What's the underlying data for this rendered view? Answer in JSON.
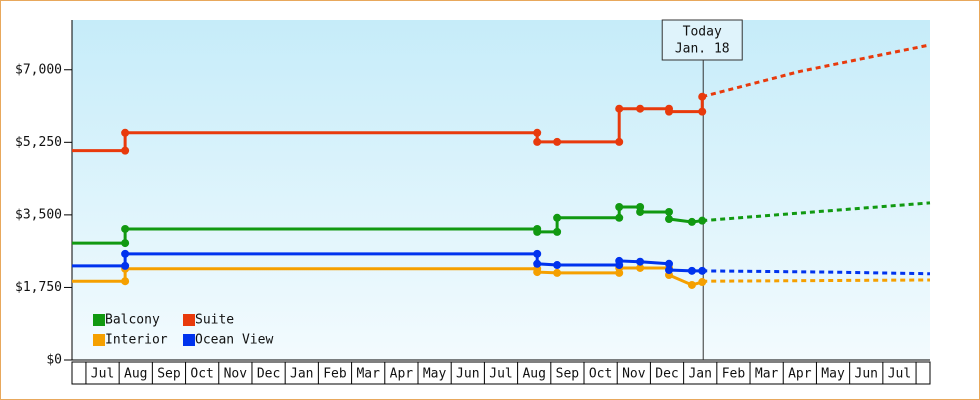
{
  "chart_data": {
    "type": "step-line",
    "xlim": [
      0.08,
      25.92
    ],
    "ylim": [
      0,
      8200
    ],
    "yticks": [
      {
        "value": 0,
        "label": "$0"
      },
      {
        "value": 1750,
        "label": "$1,750"
      },
      {
        "value": 3500,
        "label": "$3,500"
      },
      {
        "value": 5250,
        "label": "$5,250"
      },
      {
        "value": 7000,
        "label": "$7,000"
      }
    ],
    "xticks": [
      {
        "value": 1,
        "label": "Jul"
      },
      {
        "value": 2,
        "label": "Aug"
      },
      {
        "value": 3,
        "label": "Sep"
      },
      {
        "value": 4,
        "label": "Oct"
      },
      {
        "value": 5,
        "label": "Nov"
      },
      {
        "value": 6,
        "label": "Dec"
      },
      {
        "value": 7,
        "label": "Jan"
      },
      {
        "value": 8,
        "label": "Feb"
      },
      {
        "value": 9,
        "label": "Mar"
      },
      {
        "value": 10,
        "label": "Apr"
      },
      {
        "value": 11,
        "label": "May"
      },
      {
        "value": 12,
        "label": "Jun"
      },
      {
        "value": 13,
        "label": "Jul"
      },
      {
        "value": 14,
        "label": "Aug"
      },
      {
        "value": 15,
        "label": "Sep"
      },
      {
        "value": 16,
        "label": "Oct"
      },
      {
        "value": 17,
        "label": "Nov"
      },
      {
        "value": 18,
        "label": "Dec"
      },
      {
        "value": 19,
        "label": "Jan"
      },
      {
        "value": 20,
        "label": "Feb"
      },
      {
        "value": 21,
        "label": "Mar"
      },
      {
        "value": 22,
        "label": "Apr"
      },
      {
        "value": 23,
        "label": "May"
      },
      {
        "value": 24,
        "label": "Jun"
      },
      {
        "value": 25,
        "label": "Jul"
      }
    ],
    "today": {
      "x": 19.09,
      "label": [
        "Today",
        "Jan. 18"
      ]
    },
    "legend": "bottom-left",
    "series": [
      {
        "name": "Balcony",
        "color": "#119911",
        "x": [
          0.08,
          1.68,
          1.68,
          14.09,
          14.09,
          14.69,
          14.69,
          16.56,
          16.56,
          17.19,
          17.19,
          18.06,
          18.06,
          18.75,
          19.06
        ],
        "values": [
          2820,
          2820,
          3160,
          3160,
          3090,
          3090,
          3430,
          3430,
          3690,
          3690,
          3570,
          3570,
          3400,
          3330,
          3360
        ],
        "projection": {
          "x": [
            19.06,
            25.92
          ],
          "values": [
            3360,
            3790
          ]
        }
      },
      {
        "name": "Suite",
        "color": "#e83a0c",
        "x": [
          0.08,
          1.68,
          1.68,
          14.09,
          14.09,
          14.69,
          16.56,
          16.56,
          17.19,
          18.06,
          18.06,
          19.06,
          19.06
        ],
        "values": [
          5050,
          5050,
          5480,
          5480,
          5260,
          5260,
          5260,
          6060,
          6060,
          6060,
          5990,
          5990,
          6350
        ],
        "projection": {
          "x": [
            19.06,
            22,
            25.92
          ],
          "values": [
            6350,
            6960,
            7600
          ]
        }
      },
      {
        "name": "Interior",
        "color": "#f5a000",
        "x": [
          0.08,
          1.68,
          1.68,
          14.09,
          14.09,
          14.69,
          16.56,
          16.56,
          17.19,
          18.06,
          18.06,
          18.75,
          19.06
        ],
        "values": [
          1900,
          1900,
          2200,
          2200,
          2120,
          2100,
          2100,
          2220,
          2220,
          2220,
          2050,
          1810,
          1880
        ],
        "projection": {
          "x": [
            19.06,
            25.92
          ],
          "values": [
            1900,
            1930
          ]
        }
      },
      {
        "name": "Ocean View",
        "color": "#0033ee",
        "x": [
          0.08,
          1.68,
          1.68,
          14.09,
          14.09,
          14.69,
          16.56,
          16.56,
          17.19,
          18.06,
          18.06,
          18.75,
          19.06
        ],
        "values": [
          2270,
          2270,
          2560,
          2560,
          2320,
          2290,
          2290,
          2390,
          2370,
          2320,
          2170,
          2150,
          2150
        ],
        "projection": {
          "x": [
            19.06,
            22.91,
            25.92
          ],
          "values": [
            2150,
            2120,
            2080
          ]
        }
      }
    ]
  }
}
